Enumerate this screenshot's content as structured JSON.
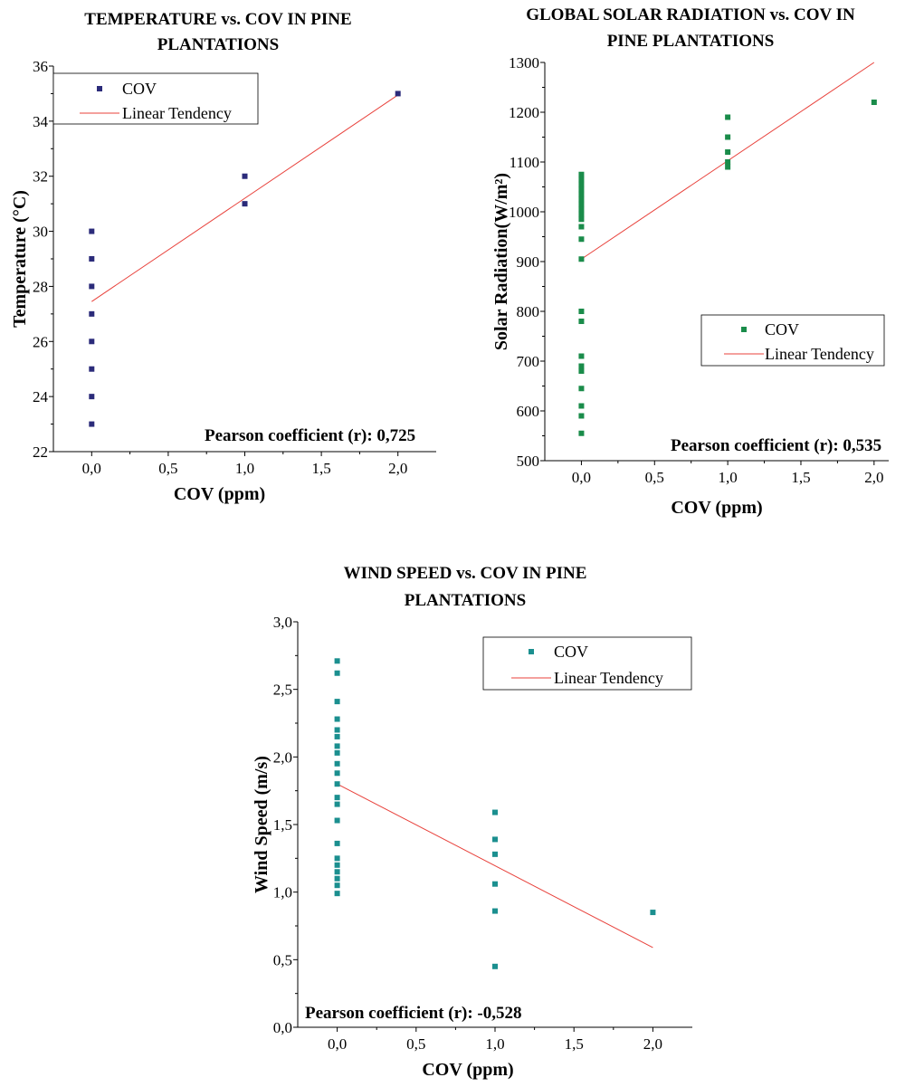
{
  "colors": {
    "trend": "#e8413b",
    "axis": "#000000"
  },
  "chart_data": [
    {
      "id": "temp",
      "type": "scatter",
      "title": [
        "TEMPERATURE vs. COV IN PINE",
        "PLANTATIONS"
      ],
      "xlabel": "COV (ppm)",
      "ylabel": "Temperature (°C)",
      "xlim": [
        -0.25,
        2.25
      ],
      "ylim": [
        22,
        36
      ],
      "xticks": [
        0,
        0.5,
        1,
        1.5,
        2
      ],
      "xtick_labels": [
        "0,0",
        "0,5",
        "1,0",
        "1,5",
        "2,0"
      ],
      "yticks": [
        22,
        24,
        26,
        28,
        30,
        32,
        34,
        36
      ],
      "ytick_labels": [
        "22",
        "24",
        "26",
        "28",
        "30",
        "32",
        "34",
        "36"
      ],
      "marker_color": "#2b2b7a",
      "series": [
        {
          "name": "COV",
          "points": [
            [
              0,
              23
            ],
            [
              0,
              24
            ],
            [
              0,
              25
            ],
            [
              0,
              26
            ],
            [
              0,
              27
            ],
            [
              0,
              28
            ],
            [
              0,
              29
            ],
            [
              0,
              30
            ],
            [
              1,
              31
            ],
            [
              1,
              32
            ],
            [
              2,
              35
            ]
          ]
        }
      ],
      "trend": {
        "name": "Linear Tendency",
        "from": [
          0,
          27.45
        ],
        "to": [
          2,
          34.95
        ]
      },
      "legend": "top-left",
      "annotation": "Pearson coefficient (r):  0,725"
    },
    {
      "id": "solar",
      "type": "scatter",
      "title": [
        "GLOBAL SOLAR RADIATION vs. COV IN",
        "PINE PLANTATIONS"
      ],
      "xlabel": "COV (ppm)",
      "ylabel": "Solar Radiation(W/m²)",
      "xlim": [
        -0.25,
        2.1
      ],
      "ylim": [
        500,
        1300
      ],
      "xticks": [
        0,
        0.5,
        1,
        1.5,
        2
      ],
      "xtick_labels": [
        "0,0",
        "0,5",
        "1,0",
        "1,5",
        "2,0"
      ],
      "yticks": [
        500,
        600,
        700,
        800,
        900,
        1000,
        1100,
        1200,
        1300
      ],
      "ytick_labels": [
        "500",
        "600",
        "700",
        "800",
        "900",
        "1000",
        "1100",
        "1200",
        "1300"
      ],
      "marker_color": "#1a8c4a",
      "series": [
        {
          "name": "COV",
          "points": [
            [
              0,
              555
            ],
            [
              0,
              590
            ],
            [
              0,
              610
            ],
            [
              0,
              645
            ],
            [
              0,
              680
            ],
            [
              0,
              690
            ],
            [
              0,
              710
            ],
            [
              0,
              780
            ],
            [
              0,
              800
            ],
            [
              0,
              905
            ],
            [
              0,
              945
            ],
            [
              0,
              970
            ],
            [
              0,
              985
            ],
            [
              0,
              995
            ],
            [
              0,
              1005
            ],
            [
              0,
              1015
            ],
            [
              0,
              1025
            ],
            [
              0,
              1035
            ],
            [
              0,
              1045
            ],
            [
              0,
              1055
            ],
            [
              0,
              1065
            ],
            [
              0,
              1075
            ],
            [
              1,
              1090
            ],
            [
              1,
              1100
            ],
            [
              1,
              1120
            ],
            [
              1,
              1150
            ],
            [
              1,
              1190
            ],
            [
              2,
              1220
            ]
          ]
        }
      ],
      "trend": {
        "name": "Linear Tendency",
        "from": [
          0,
          905
        ],
        "to": [
          2,
          1300
        ]
      },
      "legend": "middle-right",
      "annotation": "Pearson coefficient (r):  0,535"
    },
    {
      "id": "wind",
      "type": "scatter",
      "title": [
        "WIND SPEED vs. COV IN PINE",
        "PLANTATIONS"
      ],
      "xlabel": "COV (ppm)",
      "ylabel": "Wind Speed (m/s)",
      "xlim": [
        -0.25,
        2.25
      ],
      "ylim": [
        0,
        3
      ],
      "xticks": [
        0,
        0.5,
        1,
        1.5,
        2
      ],
      "xtick_labels": [
        "0,0",
        "0,5",
        "1,0",
        "1,5",
        "2,0"
      ],
      "yticks": [
        0,
        0.5,
        1,
        1.5,
        2,
        2.5,
        3
      ],
      "ytick_labels": [
        "0,0",
        "0,5",
        "1,0",
        "1,5",
        "2,0",
        "2,5",
        "3,0"
      ],
      "marker_color": "#1b8f8f",
      "series": [
        {
          "name": "COV",
          "points": [
            [
              0,
              0.99
            ],
            [
              0,
              1.05
            ],
            [
              0,
              1.1
            ],
            [
              0,
              1.15
            ],
            [
              0,
              1.2
            ],
            [
              0,
              1.25
            ],
            [
              0,
              1.36
            ],
            [
              0,
              1.53
            ],
            [
              0,
              1.65
            ],
            [
              0,
              1.7
            ],
            [
              0,
              1.8
            ],
            [
              0,
              1.88
            ],
            [
              0,
              1.95
            ],
            [
              0,
              2.03
            ],
            [
              0,
              2.08
            ],
            [
              0,
              2.15
            ],
            [
              0,
              2.2
            ],
            [
              0,
              2.28
            ],
            [
              0,
              2.41
            ],
            [
              0,
              2.62
            ],
            [
              0,
              2.71
            ],
            [
              1,
              0.45
            ],
            [
              1,
              0.86
            ],
            [
              1,
              1.06
            ],
            [
              1,
              1.28
            ],
            [
              1,
              1.39
            ],
            [
              1,
              1.59
            ],
            [
              2,
              0.85
            ]
          ]
        }
      ],
      "trend": {
        "name": "Linear Tendency",
        "from": [
          0,
          1.8
        ],
        "to": [
          2,
          0.59
        ]
      },
      "legend": "top-right",
      "annotation": "Pearson coefficient (r):  -0,528"
    }
  ]
}
